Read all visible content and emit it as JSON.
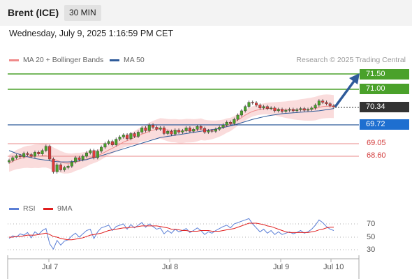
{
  "header": {
    "symbol": "Brent (ICE)",
    "timeframe": "30 MIN"
  },
  "datetime": "Wednesday, July 9, 2025 1:16:59 PM CET",
  "legend": {
    "ma20": {
      "label": "MA 20 + Bollinger Bands",
      "color": "#f08a8a"
    },
    "ma50": {
      "label": "MA 50",
      "color": "#2f5b9a"
    }
  },
  "credit": "Research © 2025 Trading Central",
  "levels": {
    "target2": "71.50",
    "target1": "71.00",
    "last": "70.34",
    "pivot": "69.72",
    "support1": "69.05",
    "support2": "68.60"
  },
  "colors": {
    "up": "#4aa12a",
    "down": "#e23a3a",
    "pivot": "#1e6fd0",
    "last": "#333333",
    "arrow": "#2f5b9a",
    "band": "#f9d6d6"
  },
  "rsi_legend": {
    "rsi": "RSI",
    "ma": "9MA"
  },
  "rsi_axis": [
    "70",
    "50",
    "30"
  ],
  "x_axis": [
    "Jul 7",
    "Jul 8",
    "Jul 9",
    "Jul 10"
  ],
  "chart_data": {
    "type": "candlestick",
    "y_range": [
      67.9,
      71.7
    ],
    "closes": [
      68.45,
      68.55,
      68.62,
      68.58,
      68.7,
      68.66,
      68.6,
      68.74,
      68.68,
      68.8,
      68.95,
      68.5,
      68.05,
      68.3,
      68.12,
      68.2,
      68.25,
      68.4,
      68.55,
      68.48,
      68.6,
      68.72,
      68.8,
      68.55,
      68.78,
      68.92,
      69.05,
      69.12,
      69.0,
      69.2,
      69.28,
      69.35,
      69.22,
      69.4,
      69.3,
      69.45,
      69.6,
      69.5,
      69.7,
      69.62,
      69.55,
      69.6,
      69.4,
      69.48,
      69.38,
      69.52,
      69.45,
      69.5,
      69.6,
      69.48,
      69.55,
      69.65,
      69.58,
      69.45,
      69.5,
      69.48,
      69.55,
      69.62,
      69.7,
      69.8,
      69.75,
      69.9,
      70.05,
      70.2,
      70.35,
      70.5,
      70.48,
      70.4,
      70.3,
      70.35,
      70.28,
      70.3,
      70.2,
      70.25,
      70.18,
      70.22,
      70.25,
      70.2,
      70.24,
      70.28,
      70.22,
      70.25,
      70.3,
      70.4,
      70.55,
      70.5,
      70.45,
      70.38,
      70.34
    ],
    "ma20": [
      68.35,
      68.42,
      68.48,
      68.52,
      68.56,
      68.58,
      68.58,
      68.6,
      68.6,
      68.62,
      68.62,
      68.58,
      68.5,
      68.45,
      68.4,
      68.36,
      68.35,
      68.36,
      68.4,
      68.42,
      68.46,
      68.5,
      68.55,
      68.58,
      68.62,
      68.68,
      68.75,
      68.82,
      68.88,
      68.95,
      69.02,
      69.1,
      69.15,
      69.2,
      69.26,
      69.32,
      69.38,
      69.42,
      69.48,
      69.52,
      69.55,
      69.58,
      69.55,
      69.52,
      69.5,
      69.5,
      69.48,
      69.48,
      69.5,
      69.5,
      69.5,
      69.52,
      69.55,
      69.52,
      69.52,
      69.53,
      69.55,
      69.58,
      69.62,
      69.68,
      69.72,
      69.8,
      69.88,
      69.96,
      70.05,
      70.12,
      70.18,
      70.22,
      70.25,
      70.27,
      70.28,
      70.28,
      70.27,
      70.26,
      70.25,
      70.24,
      70.24,
      70.23,
      70.23,
      70.24,
      70.24,
      70.25,
      70.26,
      70.28,
      70.32,
      70.35,
      70.36,
      70.36,
      70.35
    ],
    "ma50": [
      68.8,
      68.75,
      68.7,
      68.66,
      68.62,
      68.58,
      68.55,
      68.52,
      68.5,
      68.48,
      68.46,
      68.44,
      68.42,
      68.41,
      68.4,
      68.4,
      68.4,
      68.41,
      68.42,
      68.44,
      68.46,
      68.48,
      68.52,
      68.55,
      68.58,
      68.62,
      68.66,
      68.7,
      68.74,
      68.78,
      68.82,
      68.86,
      68.9,
      68.94,
      68.98,
      69.02,
      69.06,
      69.1,
      69.14,
      69.18,
      69.22,
      69.26,
      69.28,
      69.3,
      69.32,
      69.34,
      69.36,
      69.38,
      69.4,
      69.42,
      69.44,
      69.46,
      69.48,
      69.5,
      69.52,
      69.54,
      69.56,
      69.58,
      69.61,
      69.64,
      69.67,
      69.7,
      69.74,
      69.78,
      69.82,
      69.86,
      69.9,
      69.93,
      69.96,
      69.99,
      70.02,
      70.04,
      70.06,
      70.08,
      70.1,
      70.11,
      70.12,
      70.13,
      70.14,
      70.15,
      70.16,
      70.17,
      70.18,
      70.19,
      70.2,
      70.22,
      70.24,
      70.26,
      70.28
    ],
    "rsi": [
      48,
      52,
      50,
      55,
      53,
      57,
      49,
      58,
      54,
      60,
      63,
      40,
      32,
      45,
      38,
      44,
      46,
      52,
      56,
      50,
      55,
      60,
      62,
      48,
      58,
      64,
      66,
      68,
      60,
      66,
      68,
      70,
      62,
      69,
      64,
      68,
      72,
      65,
      70,
      66,
      62,
      64,
      55,
      60,
      56,
      62,
      58,
      60,
      63,
      57,
      60,
      64,
      60,
      54,
      58,
      56,
      60,
      63,
      66,
      68,
      64,
      70,
      72,
      74,
      76,
      78,
      70,
      64,
      58,
      62,
      56,
      60,
      54,
      58,
      54,
      56,
      58,
      55,
      57,
      60,
      56,
      58,
      62,
      68,
      76,
      72,
      66,
      62,
      60
    ],
    "rsi_ma": [
      50,
      50,
      51,
      51,
      52,
      53,
      53,
      53,
      54,
      55,
      56,
      54,
      51,
      50,
      48,
      47,
      46,
      46,
      47,
      48,
      49,
      51,
      53,
      54,
      55,
      56,
      58,
      60,
      61,
      62,
      63,
      64,
      64,
      65,
      65,
      66,
      67,
      67,
      67,
      67,
      67,
      66,
      65,
      64,
      62,
      62,
      61,
      60,
      60,
      59,
      59,
      59,
      60,
      60,
      60,
      59,
      59,
      59,
      60,
      61,
      62,
      63,
      65,
      67,
      69,
      71,
      71,
      71,
      70,
      69,
      67,
      66,
      64,
      62,
      60,
      58,
      57,
      57,
      57,
      57,
      57,
      57,
      58,
      59,
      61,
      62,
      64,
      65,
      65
    ]
  }
}
